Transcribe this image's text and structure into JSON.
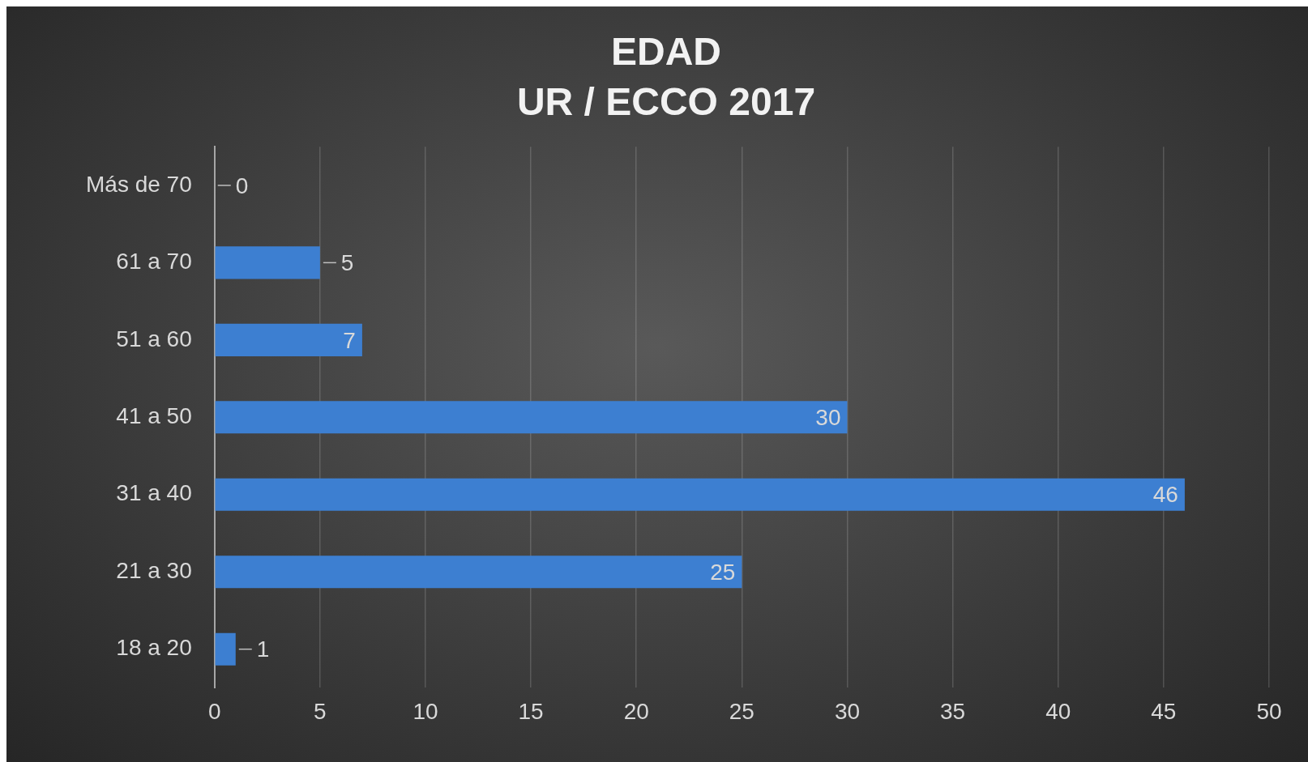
{
  "chart_data": {
    "type": "bar",
    "orientation": "horizontal",
    "title": "EDAD",
    "subtitle": "UR / ECCO 2017",
    "categories": [
      "Más de 70",
      "61 a 70",
      "51 a 60",
      "41 a 50",
      "31 a 40",
      "21 a 30",
      "18 a 20"
    ],
    "values": [
      0,
      5,
      7,
      30,
      46,
      25,
      1
    ],
    "color": "#3d7fd1",
    "xlim": [
      0,
      50
    ],
    "xticks": [
      0,
      5,
      10,
      15,
      20,
      25,
      30,
      35,
      40,
      45,
      50
    ],
    "grid": "x",
    "data_labels": true,
    "legend": false
  }
}
